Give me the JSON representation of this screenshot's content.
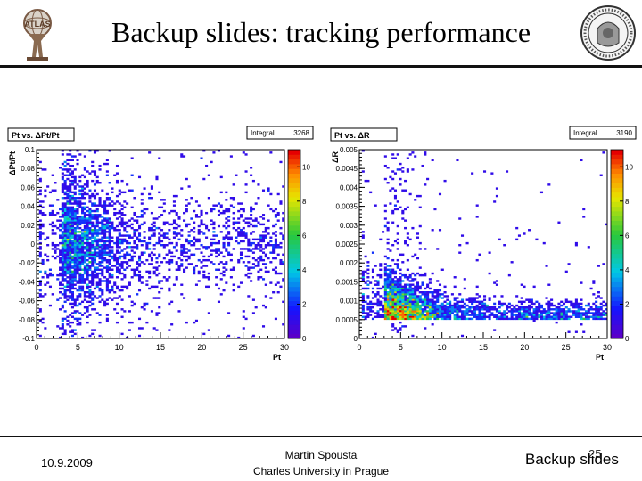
{
  "slide": {
    "title": "Backup slides: tracking performance",
    "footer_left": "10.9.2009",
    "footer_center_line1": "Martin Spousta",
    "footer_center_line2": "Charles University in Prague",
    "footer_right": "Backup slides",
    "page_number": "25"
  },
  "chart_data": [
    {
      "type": "heatmap",
      "title": "Pt vs. ΔPt/Pt",
      "stats_label": "Integral",
      "stats_value": "3268",
      "xlabel": "Pt",
      "ylabel": "ΔPt/Pt",
      "xlim": [
        0,
        30
      ],
      "ylim": [
        -0.1,
        0.1
      ],
      "x_ticks": [
        0,
        5,
        10,
        15,
        20,
        25,
        30
      ],
      "y_ticks": [
        -0.1,
        -0.08,
        -0.06,
        -0.04,
        -0.02,
        0,
        0.02,
        0.04,
        0.06,
        0.08,
        0.1
      ],
      "y_tick_labels": [
        "-0.1",
        "-0.08",
        "-0.06",
        "-0.04",
        "-0.02",
        "0",
        "0.02",
        "0.04",
        "0.06",
        "0.08",
        "0.1"
      ],
      "z_ticks": [
        0,
        2,
        4,
        6,
        8,
        10
      ],
      "zlim": [
        0,
        11
      ],
      "x_bins": 100,
      "y_bins": 100,
      "distribution": {
        "x_peak": 3,
        "y_center": 0.0,
        "y_spread": 0.03
      }
    },
    {
      "type": "heatmap",
      "title": "Pt vs. ΔR",
      "stats_label": "Integral",
      "stats_value": "3190",
      "xlabel": "Pt",
      "ylabel": "ΔR",
      "xlim": [
        0,
        30
      ],
      "ylim": [
        0,
        0.005
      ],
      "x_ticks": [
        0,
        5,
        10,
        15,
        20,
        25,
        30
      ],
      "y_ticks": [
        0,
        0.0005,
        0.001,
        0.0015,
        0.002,
        0.0025,
        0.003,
        0.0035,
        0.004,
        0.0045,
        0.005
      ],
      "y_tick_labels": [
        "0",
        "0.0005",
        "0.001",
        "0.0015",
        "0.002",
        "0.0025",
        "0.003",
        "0.0035",
        "0.004",
        "0.0045",
        "0.005"
      ],
      "z_ticks": [
        0,
        2,
        4,
        6,
        8,
        10
      ],
      "zlim": [
        0,
        11
      ],
      "x_bins": 100,
      "y_bins": 100,
      "distribution": {
        "x_peak": 3,
        "y_center": 0.0005,
        "y_spread": 0.0008
      }
    }
  ]
}
